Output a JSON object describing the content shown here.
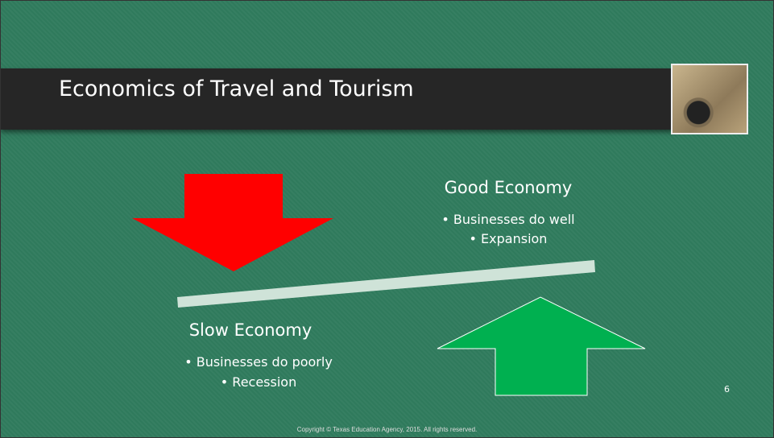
{
  "header": {
    "title": "Economics of Travel and Tourism"
  },
  "good": {
    "heading": "Good Economy",
    "bullets": [
      "• Businesses do well",
      "• Expansion"
    ]
  },
  "slow": {
    "heading": "Slow Economy",
    "bullets": [
      "• Businesses do poorly",
      "• Recession"
    ]
  },
  "footer": {
    "page_number": "6",
    "copyright": "Copyright © Texas Education Agency, 2015. All rights reserved."
  }
}
